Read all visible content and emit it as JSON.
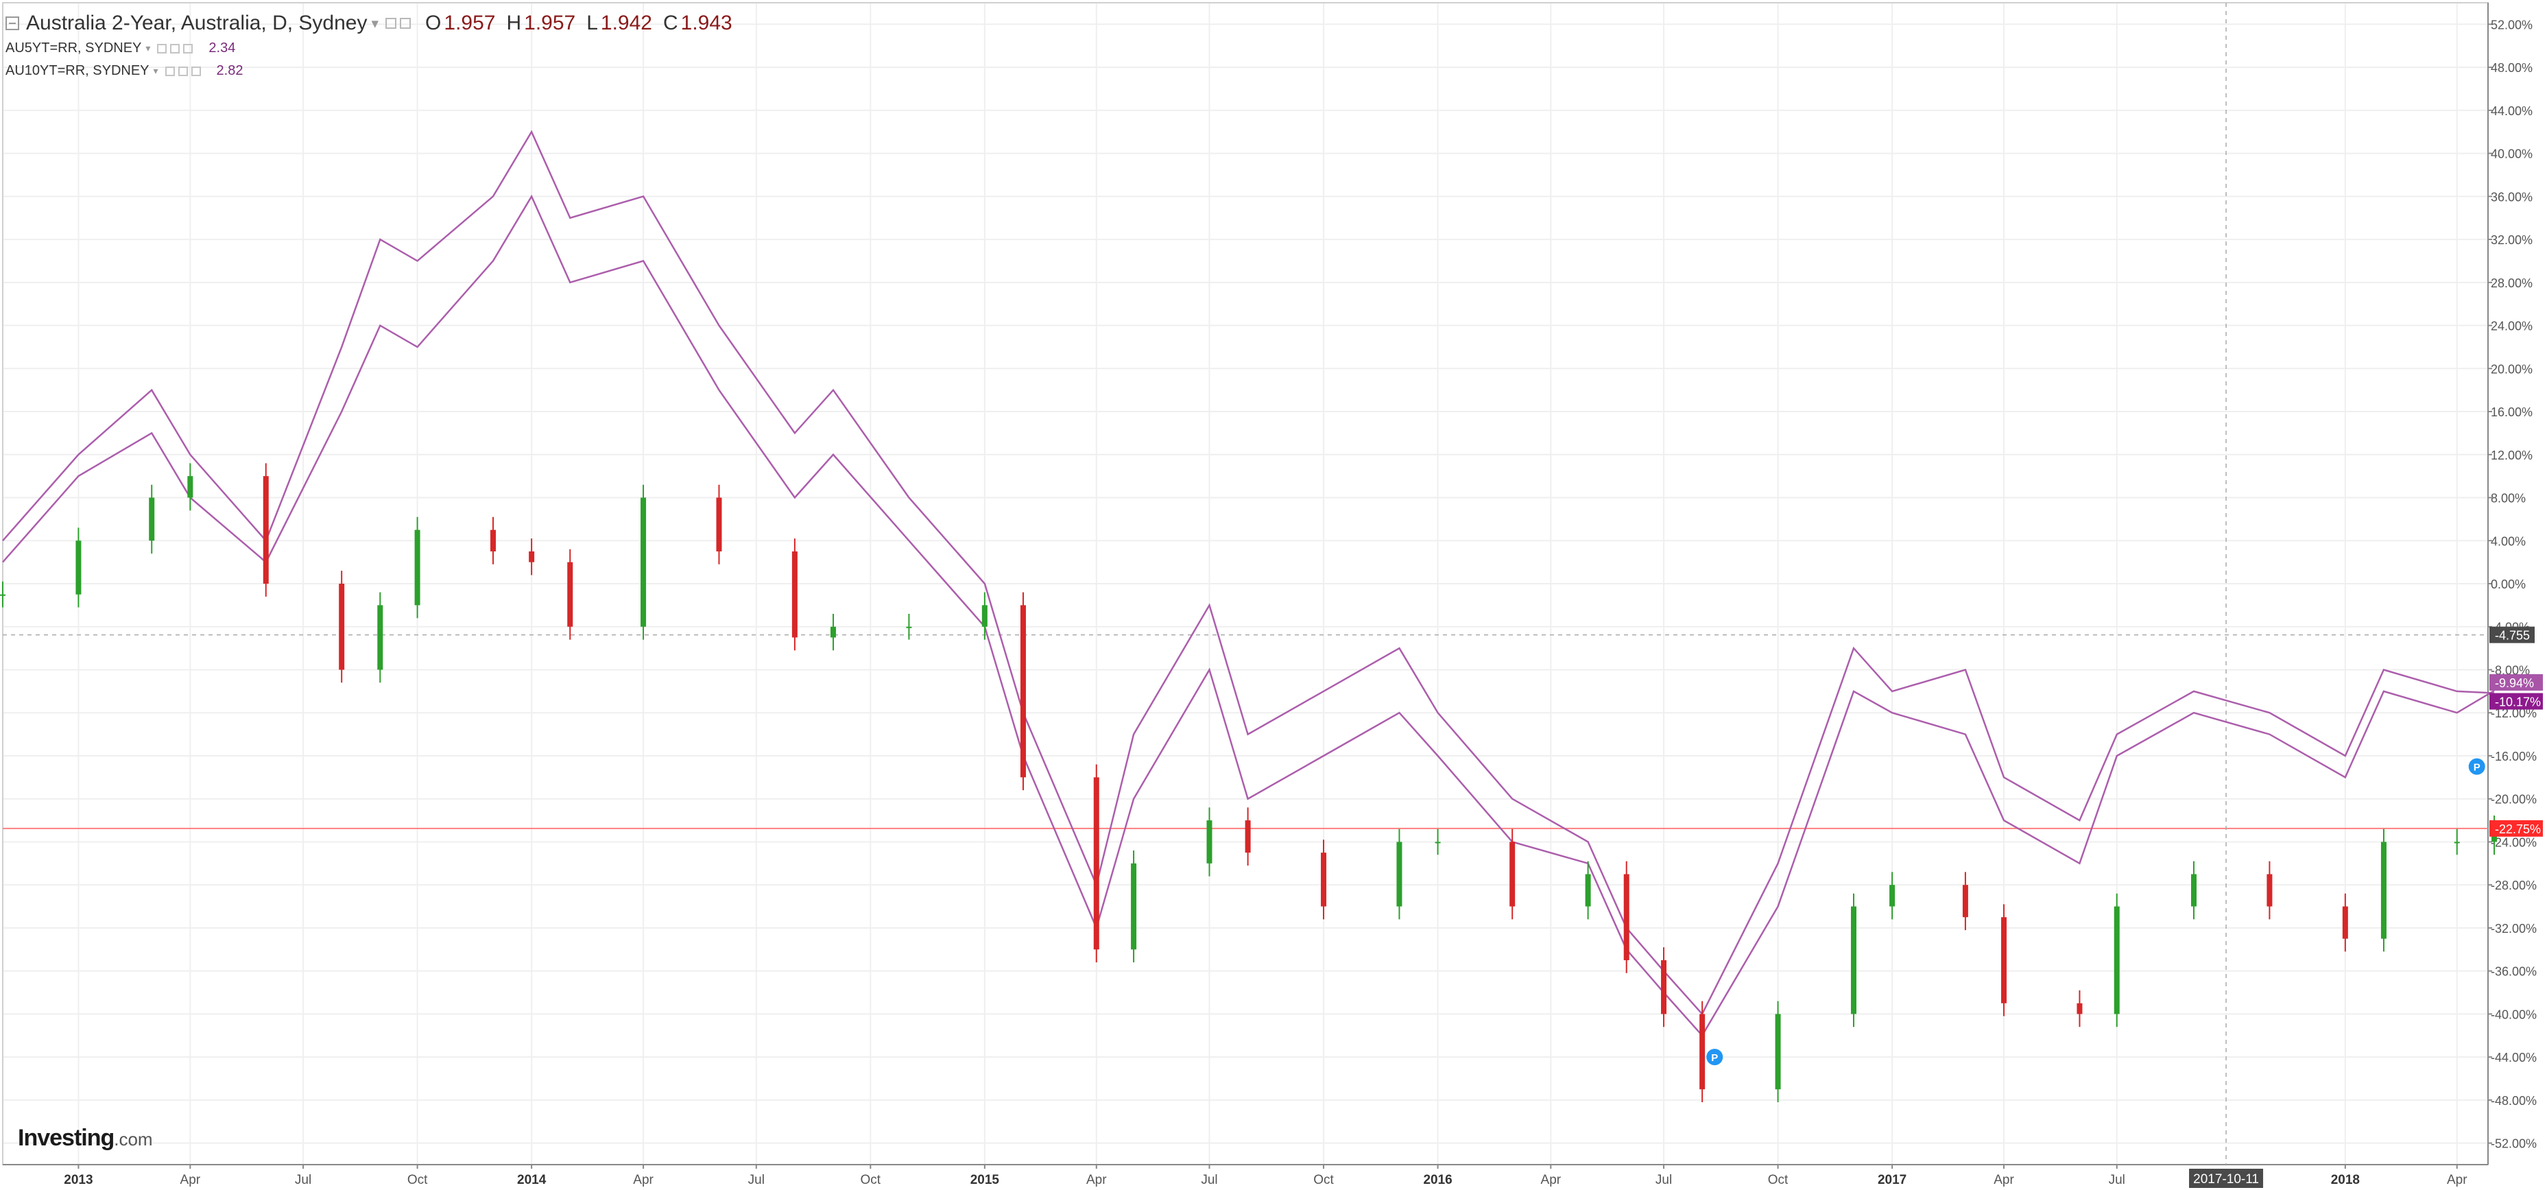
{
  "legend": {
    "main_title": "Australia 2-Year, Australia, D, Sydney",
    "ohlc": [
      {
        "label": "O",
        "value": "1.957"
      },
      {
        "label": "H",
        "value": "1.957"
      },
      {
        "label": "L",
        "value": "1.942"
      },
      {
        "label": "C",
        "value": "1.943"
      }
    ],
    "compare": [
      {
        "symbol": "AU5YT=RR, SYDNEY",
        "value": "2.34"
      },
      {
        "symbol": "AU10YT=RR, SYDNEY",
        "value": "2.82"
      }
    ]
  },
  "logo": {
    "brand": "Investing",
    "suffix": ".com"
  },
  "colors": {
    "up_candle": "#2ca02c",
    "down_candle": "#d62728",
    "compare_line": "#a855a8",
    "price_line": "#ff7f7f",
    "grid": "#efefef",
    "axis_text": "#555555",
    "marker": "#2196f3"
  },
  "chart_data": {
    "type": "line",
    "x": [
      "2012-11",
      "2013-01",
      "2013-03",
      "2013-04",
      "2013-06",
      "2013-08",
      "2013-09",
      "2013-10",
      "2013-12",
      "2014-01",
      "2014-02",
      "2014-04",
      "2014-06",
      "2014-08",
      "2014-09",
      "2014-11",
      "2015-01",
      "2015-02",
      "2015-04",
      "2015-05",
      "2015-07",
      "2015-08",
      "2015-10",
      "2015-12",
      "2016-01",
      "2016-03",
      "2016-05",
      "2016-06",
      "2016-07",
      "2016-08",
      "2016-10",
      "2016-12",
      "2017-01",
      "2017-03",
      "2017-04",
      "2017-06",
      "2017-07",
      "2017-09",
      "2017-11",
      "2018-01",
      "2018-02",
      "2018-04",
      "2018-05"
    ],
    "series": [
      {
        "name": "Australia 2-Year",
        "style": "candles",
        "values": [
          -1,
          4,
          8,
          10,
          0,
          -8,
          -2,
          5,
          3,
          2,
          -4,
          8,
          3,
          -5,
          -4,
          -4,
          -2,
          -18,
          -34,
          -26,
          -22,
          -25,
          -30,
          -24,
          -24,
          -30,
          -27,
          -35,
          -40,
          -47,
          -40,
          -30,
          -28,
          -31,
          -39,
          -40,
          -30,
          -27,
          -30,
          -33,
          -24,
          -24,
          -22.75
        ]
      },
      {
        "name": "AU5YT=RR, SYDNEY",
        "style": "line",
        "values": [
          2,
          10,
          14,
          8,
          2,
          16,
          24,
          22,
          30,
          36,
          28,
          30,
          18,
          8,
          12,
          4,
          -4,
          -16,
          -32,
          -20,
          -8,
          -20,
          -16,
          -12,
          -16,
          -24,
          -26,
          -34,
          -38,
          -42,
          -30,
          -10,
          -12,
          -14,
          -22,
          -26,
          -16,
          -12,
          -14,
          -18,
          -10,
          -12,
          -9.94
        ]
      },
      {
        "name": "AU10YT=RR, SYDNEY",
        "style": "line",
        "values": [
          4,
          12,
          18,
          12,
          4,
          22,
          32,
          30,
          36,
          42,
          34,
          36,
          24,
          14,
          18,
          8,
          0,
          -12,
          -28,
          -14,
          -2,
          -14,
          -10,
          -6,
          -12,
          -20,
          -24,
          -32,
          -36,
          -40,
          -26,
          -6,
          -10,
          -8,
          -18,
          -22,
          -14,
          -10,
          -12,
          -16,
          -8,
          -10,
          -10.17
        ]
      }
    ],
    "xticks": [
      {
        "date": "2013-01",
        "label": "2013",
        "bold": true
      },
      {
        "date": "2013-04",
        "label": "Apr"
      },
      {
        "date": "2013-07",
        "label": "Jul"
      },
      {
        "date": "2013-10",
        "label": "Oct"
      },
      {
        "date": "2014-01",
        "label": "2014",
        "bold": true
      },
      {
        "date": "2014-04",
        "label": "Apr"
      },
      {
        "date": "2014-07",
        "label": "Jul"
      },
      {
        "date": "2014-10",
        "label": "Oct"
      },
      {
        "date": "2015-01",
        "label": "2015",
        "bold": true
      },
      {
        "date": "2015-04",
        "label": "Apr"
      },
      {
        "date": "2015-07",
        "label": "Jul"
      },
      {
        "date": "2015-10",
        "label": "Oct"
      },
      {
        "date": "2016-01",
        "label": "2016",
        "bold": true
      },
      {
        "date": "2016-04",
        "label": "Apr"
      },
      {
        "date": "2016-07",
        "label": "Jul"
      },
      {
        "date": "2016-10",
        "label": "Oct"
      },
      {
        "date": "2017-01",
        "label": "2017",
        "bold": true
      },
      {
        "date": "2017-04",
        "label": "Apr"
      },
      {
        "date": "2017-07",
        "label": "Jul"
      },
      {
        "date": "2018-01",
        "label": "2018",
        "bold": true
      },
      {
        "date": "2018-04",
        "label": "Apr"
      }
    ],
    "x_range": [
      "2012-11-15",
      "2018-05-10"
    ],
    "yticks": [
      "52.00%",
      "48.00%",
      "44.00%",
      "40.00%",
      "36.00%",
      "32.00%",
      "28.00%",
      "24.00%",
      "20.00%",
      "16.00%",
      "12.00%",
      "8.00%",
      "4.00%",
      "0.00%",
      "-4.00%",
      "-8.00%",
      "-12.00%",
      "-16.00%",
      "-20.00%",
      "-24.00%",
      "-28.00%",
      "-32.00%",
      "-36.00%",
      "-40.00%",
      "-44.00%",
      "-48.00%",
      "-52.00%"
    ],
    "ylim": [
      -54,
      54
    ],
    "grid": true,
    "crosshair": {
      "date": "2017-10-11",
      "label": "2017-10-11",
      "price_label": "-4.755",
      "value": -4.755
    },
    "last_value_labels": [
      {
        "text": "-9.94%",
        "value": -9.94,
        "series": "AU5YT=RR, SYDNEY"
      },
      {
        "text": "-10.17%",
        "value": -10.17,
        "series": "AU10YT=RR, SYDNEY"
      },
      {
        "text": "-22.75%",
        "value": -22.75,
        "series": "Australia 2-Year"
      }
    ],
    "markers": [
      {
        "date": "2016-08-25",
        "value": -44,
        "symbol": "P"
      },
      {
        "date": "2018-05-01",
        "value": -17,
        "symbol": "P"
      }
    ]
  }
}
